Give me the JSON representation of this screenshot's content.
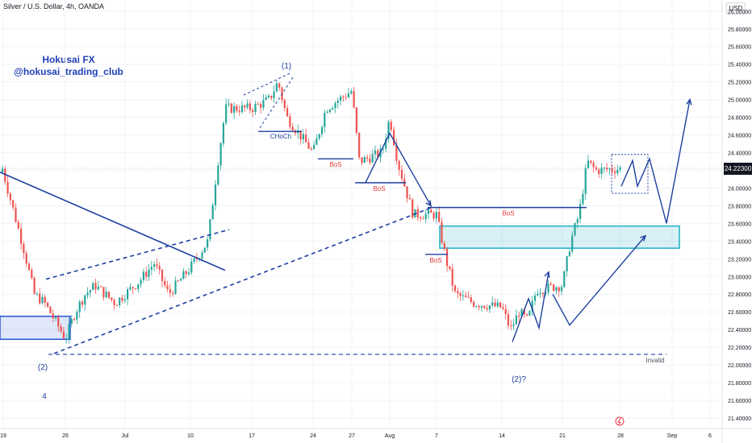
{
  "header": {
    "symbol_line": "Silver / U.S. Dollar, 4h, OANDA",
    "currency": "USD"
  },
  "brand": {
    "name": "Hokusai FX",
    "handle": "@hokusai_trading_club"
  },
  "colors": {
    "up": "#26a69a",
    "down": "#ef5350",
    "annotation": "#1e3fa0",
    "box_blue": "#2f5bd3",
    "box_cyan": "#2ab3c6",
    "bos_text": "#e53935",
    "grid": "#f0f3fa",
    "axis_text": "#131722"
  },
  "price_axis": {
    "ticks": [
      "26.00000",
      "25.80000",
      "25.60000",
      "25.40000",
      "25.20000",
      "25.00000",
      "24.80000",
      "24.60000",
      "24.40000",
      "24.20000",
      "24.00000",
      "23.80000",
      "23.60000",
      "23.40000",
      "23.20000",
      "23.00000",
      "22.80000",
      "22.60000",
      "22.40000",
      "22.20000",
      "22.00000",
      "21.80000",
      "21.60000",
      "21.40000"
    ],
    "last_price": "24.22300",
    "range": [
      21.36,
      26.12
    ]
  },
  "time_axis": {
    "labels": [
      "19",
      "26",
      "Jul",
      "10",
      "17",
      "24",
      "27",
      "Aug",
      "7",
      "14",
      "21",
      "28",
      "Sep",
      "6"
    ]
  },
  "annotations": {
    "wave_labels": [
      "(1)",
      "(2)",
      "4",
      "(2)?"
    ],
    "choch": "CHoCh",
    "bos": "BoS",
    "invalid": "Invalid"
  },
  "chart_data": {
    "type": "candlestick",
    "title": "Silver / U.S. Dollar, 4h, OANDA",
    "y_unit": "USD",
    "ylim": [
      21.36,
      26.12
    ],
    "x_range": [
      "Jun 19",
      "Sep 6"
    ],
    "last_price": 24.223,
    "close_path": [
      {
        "x": "Jun 19",
        "price": 24.18
      },
      {
        "x": "Jun 21",
        "price": 23.3
      },
      {
        "x": "Jun 22",
        "price": 22.8
      },
      {
        "x": "Jun 23",
        "price": 22.7
      },
      {
        "x": "Jun 25",
        "price": 22.3
      },
      {
        "x": "Jun 26",
        "price": 22.6
      },
      {
        "x": "Jun 27",
        "price": 22.8
      },
      {
        "x": "Jun 28",
        "price": 22.9
      },
      {
        "x": "Jun 30",
        "price": 22.7
      },
      {
        "x": "Jul 3",
        "price": 22.95
      },
      {
        "x": "Jul 5",
        "price": 23.15
      },
      {
        "x": "Jul 7",
        "price": 22.8
      },
      {
        "x": "Jul 10",
        "price": 23.1
      },
      {
        "x": "Jul 12",
        "price": 23.4
      },
      {
        "x": "Jul 13",
        "price": 24.2
      },
      {
        "x": "Jul 14",
        "price": 24.9
      },
      {
        "x": "Jul 17",
        "price": 24.9
      },
      {
        "x": "Jul 19",
        "price": 25.0
      },
      {
        "x": "Jul 20",
        "price": 25.2
      },
      {
        "x": "Jul 21",
        "price": 24.8
      },
      {
        "x": "Jul 24",
        "price": 24.4
      },
      {
        "x": "Jul 25",
        "price": 24.9
      },
      {
        "x": "Jul 27",
        "price": 25.1
      },
      {
        "x": "Jul 28",
        "price": 24.3
      },
      {
        "x": "Jul 31",
        "price": 24.4
      },
      {
        "x": "Aug 1",
        "price": 24.8
      },
      {
        "x": "Aug 2",
        "price": 24.3
      },
      {
        "x": "Aug 3",
        "price": 24.0
      },
      {
        "x": "Aug 4",
        "price": 23.7
      },
      {
        "x": "Aug 7",
        "price": 23.7
      },
      {
        "x": "Aug 8",
        "price": 23.2
      },
      {
        "x": "Aug 9",
        "price": 22.8
      },
      {
        "x": "Aug 11",
        "price": 22.7
      },
      {
        "x": "Aug 14",
        "price": 22.65
      },
      {
        "x": "Aug 15",
        "price": 22.4
      },
      {
        "x": "Aug 16",
        "price": 22.6
      },
      {
        "x": "Aug 17",
        "price": 22.5
      },
      {
        "x": "Aug 18",
        "price": 22.85
      },
      {
        "x": "Aug 21",
        "price": 22.9
      },
      {
        "x": "Aug 22",
        "price": 23.4
      },
      {
        "x": "Aug 23",
        "price": 23.7
      },
      {
        "x": "Aug 24",
        "price": 24.3
      },
      {
        "x": "Aug 25",
        "price": 24.2
      },
      {
        "x": "Aug 28",
        "price": 24.22
      }
    ],
    "drawn_levels": [
      {
        "label": "CHoCh",
        "price": 24.64
      },
      {
        "label": "BoS",
        "price": 24.33
      },
      {
        "label": "BoS",
        "price": 24.06
      },
      {
        "label": "BoS",
        "price": 23.78
      },
      {
        "label": "BoS",
        "price": 23.25
      },
      {
        "label": "Invalid",
        "price": 22.12
      }
    ],
    "zones": [
      {
        "name": "demand zone (left)",
        "from": 22.29,
        "to": 22.55
      },
      {
        "name": "demand zone (right)",
        "from": 23.32,
        "to": 23.57
      }
    ]
  }
}
